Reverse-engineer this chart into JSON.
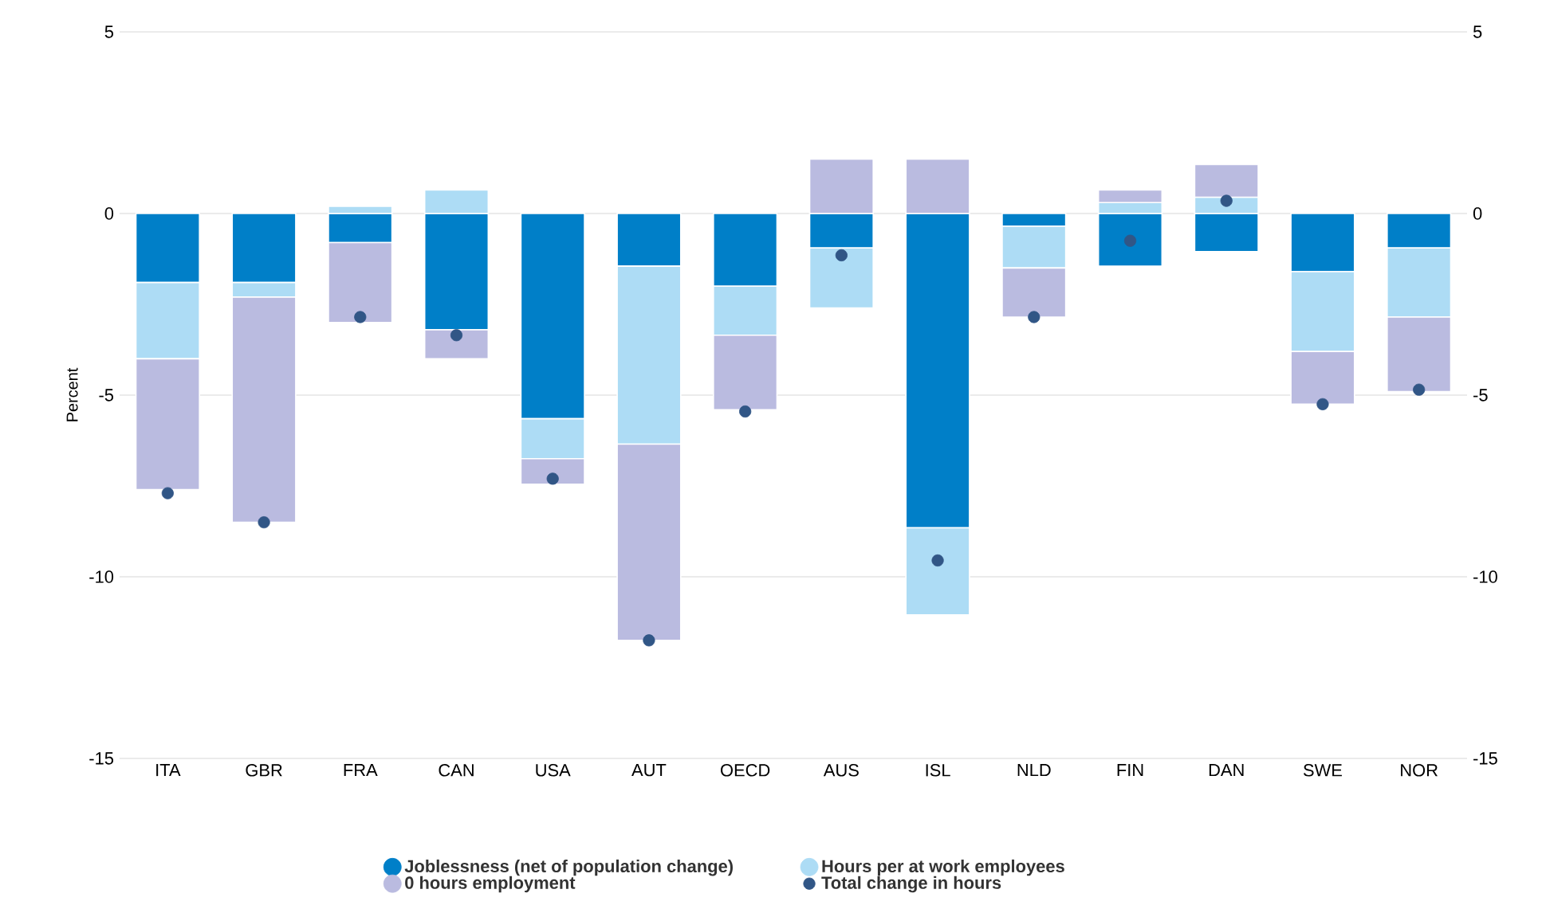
{
  "chart_data": {
    "type": "bar",
    "stacked": true,
    "ylabel": "Percent",
    "ylim": [
      -15,
      5
    ],
    "yticks": [
      -15,
      -10,
      -5,
      0,
      5
    ],
    "y2lim": [
      -15,
      5
    ],
    "y2ticks": [
      -15,
      -10,
      -5,
      0,
      5
    ],
    "grid": "y",
    "legend": "bottom",
    "categories": [
      "ITA",
      "GBR",
      "FRA",
      "CAN",
      "USA",
      "AUT",
      "OECD",
      "AUS",
      "ISL",
      "NLD",
      "FIN",
      "DAN",
      "SWE",
      "NOR"
    ],
    "series": [
      {
        "name": "Joblessness (net of population change)",
        "color": "#007fc8",
        "values": [
          -1.9,
          -1.9,
          -0.8,
          -3.2,
          -5.65,
          -1.45,
          -2.0,
          -0.95,
          -8.65,
          -0.35,
          -1.45,
          -1.05,
          -1.6,
          -0.95
        ]
      },
      {
        "name": "Hours per at work employees",
        "color": "#addcf5",
        "values": [
          -2.1,
          -0.4,
          0.2,
          0.65,
          -1.1,
          -4.9,
          -1.35,
          -1.65,
          -2.4,
          -1.15,
          0.3,
          0.45,
          -2.2,
          -1.9
        ]
      },
      {
        "name": "0 hours employment",
        "color": "#babbe0",
        "values": [
          -3.6,
          -6.2,
          -2.2,
          -0.8,
          -0.7,
          -5.4,
          -2.05,
          1.5,
          1.5,
          -1.35,
          0.35,
          0.9,
          -1.45,
          -2.05
        ]
      },
      {
        "name": "Total change in hours",
        "color": "#315686",
        "type": "scatter",
        "marker": "circle",
        "values": [
          -7.7,
          -8.5,
          -2.85,
          -3.35,
          -7.3,
          -11.75,
          -5.45,
          -1.15,
          -9.55,
          -2.85,
          -0.75,
          0.35,
          -5.25,
          -4.85
        ]
      }
    ]
  }
}
